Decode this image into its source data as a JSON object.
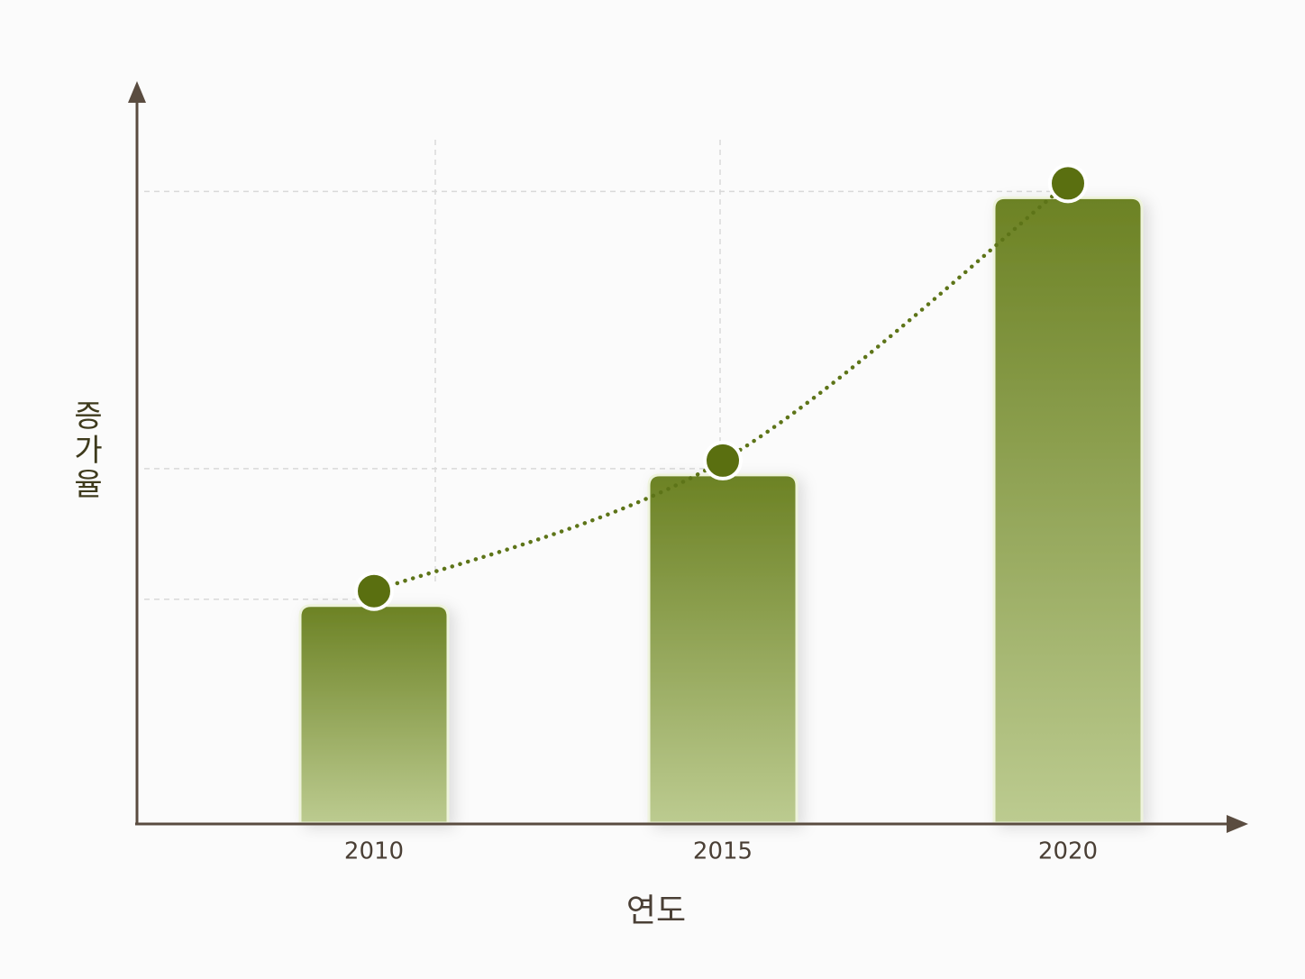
{
  "chart_data": {
    "type": "bar",
    "x_label": "연도",
    "y_label": "증가율",
    "categories": [
      "2010",
      "2015",
      "2020"
    ],
    "values": [
      29.5,
      47.2,
      84.8
    ],
    "color": "#6e8426",
    "ylim": [
      0,
      100
    ],
    "grid": true
  }
}
